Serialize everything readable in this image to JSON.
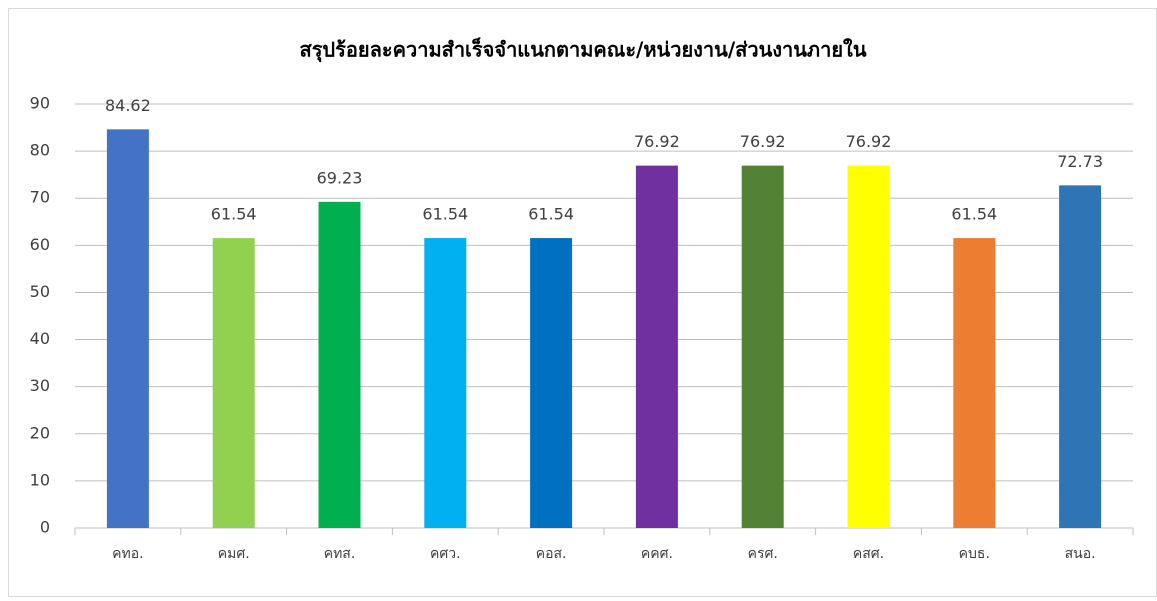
{
  "chart_data": {
    "type": "bar",
    "title": "สรุปร้อยละความสำเร็จจำแนกตามคณะ/หน่วยงาน/ส่วนงานภายใน",
    "categories": [
      "คทอ.",
      "คมศ.",
      "คทส.",
      "คศว.",
      "คอส.",
      "คคศ.",
      "ครศ.",
      "คสศ.",
      "คบธ.",
      "สนอ."
    ],
    "values": [
      84.62,
      61.54,
      69.23,
      61.54,
      61.54,
      76.92,
      76.92,
      76.92,
      61.54,
      72.73
    ],
    "colors": [
      "#4472c4",
      "#92d050",
      "#00b050",
      "#00b0f0",
      "#0070c0",
      "#7030a0",
      "#548235",
      "#ffff00",
      "#ed7d31",
      "#2e75b6"
    ],
    "ylim": [
      0,
      90
    ],
    "yticks": [
      0,
      10,
      20,
      30,
      40,
      50,
      60,
      70,
      80,
      90
    ],
    "grid": true
  }
}
